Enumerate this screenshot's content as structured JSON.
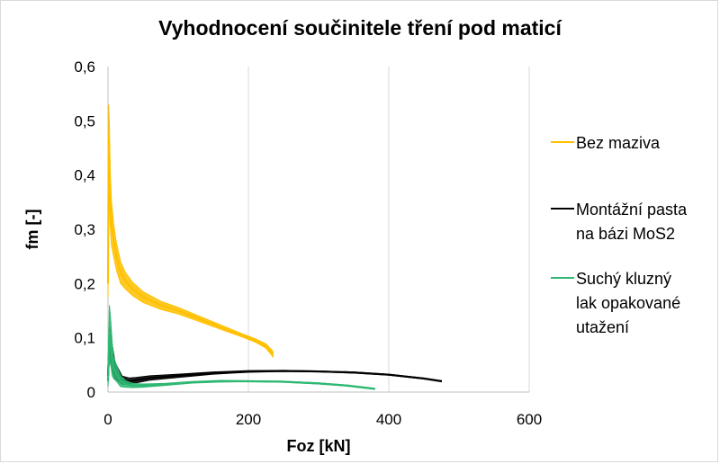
{
  "chart_data": {
    "type": "line",
    "title": "Vyhodnocení součinitele tření pod maticí",
    "xlabel": "Foz [kN]",
    "ylabel": "fm [-]",
    "xlim": [
      0,
      600
    ],
    "ylim": [
      0,
      0.6
    ],
    "x_ticks": [
      "0",
      "200",
      "400",
      "600"
    ],
    "y_ticks": [
      "0",
      "0,1",
      "0,2",
      "0,3",
      "0,4",
      "0,5",
      "0,6"
    ],
    "grid": "vertical",
    "legend_position": "right",
    "series": [
      {
        "name": "Bez maziva",
        "color": "#FFC000",
        "x": [
          0,
          1,
          2,
          3,
          5,
          8,
          12,
          18,
          25,
          35,
          50,
          75,
          100,
          130,
          160,
          190,
          210,
          225,
          235
        ],
        "y": [
          0.2,
          0.47,
          0.43,
          0.36,
          0.31,
          0.28,
          0.25,
          0.22,
          0.205,
          0.19,
          0.175,
          0.16,
          0.15,
          0.135,
          0.12,
          0.105,
          0.095,
          0.085,
          0.07
        ],
        "y_spread": [
          0.05,
          0.12,
          0.12,
          0.1,
          0.08,
          0.06,
          0.05,
          0.04,
          0.03,
          0.025,
          0.02,
          0.015,
          0.012,
          0.01,
          0.008,
          0.006,
          0.006,
          0.008,
          0.01
        ]
      },
      {
        "name": "Montážní pasta na bázi MoS2",
        "color": "#000000",
        "x": [
          0,
          2,
          5,
          10,
          20,
          30,
          40,
          60,
          100,
          150,
          200,
          250,
          300,
          350,
          400,
          450,
          475
        ],
        "y": [
          0.03,
          0.09,
          0.07,
          0.04,
          0.022,
          0.02,
          0.022,
          0.026,
          0.03,
          0.035,
          0.038,
          0.039,
          0.038,
          0.036,
          0.032,
          0.025,
          0.02
        ],
        "y_spread": [
          0.02,
          0.06,
          0.05,
          0.03,
          0.015,
          0.012,
          0.01,
          0.008,
          0.006,
          0.004,
          0.003,
          0.002,
          0.002,
          0.002,
          0.002,
          0.002,
          0.002
        ]
      },
      {
        "name": "Suchý kluzný lak  opakované utažení",
        "color": "#2EB872",
        "x": [
          0,
          2,
          4,
          6,
          8,
          12,
          18,
          25,
          35,
          50,
          80,
          120,
          160,
          200,
          250,
          300,
          340,
          380
        ],
        "y": [
          0.02,
          0.11,
          0.09,
          0.06,
          0.045,
          0.035,
          0.02,
          0.015,
          0.012,
          0.012,
          0.014,
          0.018,
          0.02,
          0.02,
          0.019,
          0.016,
          0.012,
          0.006
        ],
        "y_spread": [
          0.02,
          0.1,
          0.08,
          0.06,
          0.04,
          0.03,
          0.02,
          0.012,
          0.008,
          0.006,
          0.004,
          0.003,
          0.003,
          0.002,
          0.002,
          0.002,
          0.002,
          0.002
        ]
      }
    ]
  }
}
